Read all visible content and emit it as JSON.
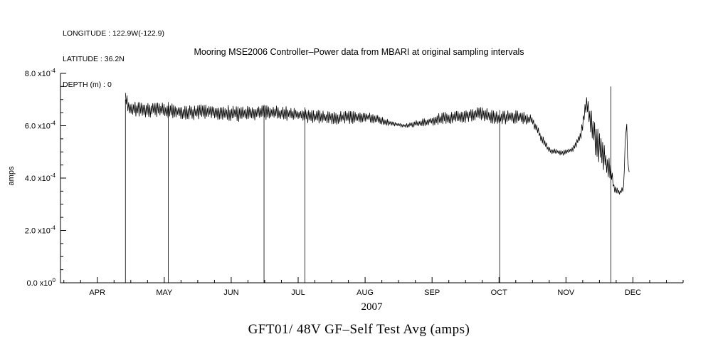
{
  "meta": {
    "longitude": "LONGITUDE : 122.9W(-122.9)",
    "latitude": "LATITUDE : 36.2N",
    "depth": "DEPTH (m) : 0"
  },
  "caption": "GFT01/ 48V GF–Self Test Avg (amps)",
  "chart_data": {
    "type": "line",
    "title": "Mooring MSE2006 Controller–Power data from MBARI at original sampling intervals",
    "xlabel": "2007",
    "ylabel": "amps",
    "x_range": [
      3.45,
      12.75
    ],
    "y_range_amps": [
      0,
      0.0008
    ],
    "x_ticks": [
      {
        "pos": 4,
        "label": "APR"
      },
      {
        "pos": 5,
        "label": "MAY"
      },
      {
        "pos": 6,
        "label": "JUN"
      },
      {
        "pos": 7,
        "label": "JUL"
      },
      {
        "pos": 8,
        "label": "AUG"
      },
      {
        "pos": 9,
        "label": "SEP"
      },
      {
        "pos": 10,
        "label": "OCT"
      },
      {
        "pos": 11,
        "label": "NOV"
      },
      {
        "pos": 12,
        "label": "DEC"
      }
    ],
    "x_minor_step": 0.25,
    "y_ticks": [
      {
        "value": 0.0,
        "mantissa": "0.0",
        "exponent": "0"
      },
      {
        "value": 0.0002,
        "mantissa": "2.0",
        "exponent": "-4"
      },
      {
        "value": 0.0004,
        "mantissa": "4.0",
        "exponent": "-4"
      },
      {
        "value": 0.0006,
        "mantissa": "6.0",
        "exponent": "-4"
      },
      {
        "value": 0.0008,
        "mantissa": "8.0",
        "exponent": "-4"
      }
    ],
    "y_minor_step": 5e-05,
    "grid": false,
    "legend": false,
    "series": {
      "name": "GFT01 48V GF-Self Test Avg",
      "color": "#000000",
      "x_start": 4.42,
      "x_end": 11.95,
      "sample_step": 0.012,
      "baseline_e4": [
        [
          4.42,
          7.0
        ],
        [
          4.48,
          6.65
        ],
        [
          4.7,
          6.6
        ],
        [
          5.0,
          6.6
        ],
        [
          5.3,
          6.5
        ],
        [
          5.7,
          6.55
        ],
        [
          6.1,
          6.45
        ],
        [
          6.5,
          6.5
        ],
        [
          6.9,
          6.45
        ],
        [
          7.2,
          6.35
        ],
        [
          7.6,
          6.3
        ],
        [
          8.0,
          6.35
        ],
        [
          8.25,
          6.2
        ],
        [
          8.45,
          6.05
        ],
        [
          8.6,
          6.0
        ],
        [
          8.8,
          6.1
        ],
        [
          9.1,
          6.25
        ],
        [
          9.4,
          6.35
        ],
        [
          9.7,
          6.45
        ],
        [
          10.0,
          6.3
        ],
        [
          10.3,
          6.35
        ],
        [
          10.5,
          6.2
        ],
        [
          10.62,
          5.6
        ],
        [
          10.75,
          5.05
        ],
        [
          10.95,
          4.95
        ],
        [
          11.1,
          5.1
        ],
        [
          11.22,
          5.6
        ],
        [
          11.3,
          6.9
        ],
        [
          11.36,
          6.3
        ],
        [
          11.45,
          5.4
        ],
        [
          11.55,
          4.9
        ],
        [
          11.62,
          4.5
        ],
        [
          11.67,
          4.2
        ],
        [
          11.72,
          3.6
        ],
        [
          11.8,
          3.45
        ],
        [
          11.86,
          3.6
        ],
        [
          11.9,
          6.3
        ],
        [
          11.93,
          4.3
        ]
      ],
      "noise_halfband_e4": [
        [
          4.42,
          0.3
        ],
        [
          5.0,
          0.28
        ],
        [
          6.0,
          0.3
        ],
        [
          7.0,
          0.27
        ],
        [
          7.8,
          0.25
        ],
        [
          8.2,
          0.2
        ],
        [
          8.5,
          0.07
        ],
        [
          8.75,
          0.12
        ],
        [
          9.2,
          0.25
        ],
        [
          9.8,
          0.28
        ],
        [
          10.3,
          0.25
        ],
        [
          10.55,
          0.2
        ],
        [
          10.75,
          0.12
        ],
        [
          11.0,
          0.1
        ],
        [
          11.2,
          0.15
        ],
        [
          11.3,
          0.35
        ],
        [
          11.45,
          0.65
        ],
        [
          11.6,
          0.55
        ],
        [
          11.68,
          0.3
        ],
        [
          11.75,
          0.12
        ],
        [
          11.85,
          0.1
        ],
        [
          11.9,
          0.35
        ],
        [
          11.93,
          0.15
        ]
      ]
    },
    "dropouts": [
      {
        "x": 4.42,
        "top_e4": 7.0
      },
      {
        "x": 5.06,
        "top_e4": 6.9
      },
      {
        "x": 6.49,
        "top_e4": 6.8
      },
      {
        "x": 7.1,
        "top_e4": 6.7
      },
      {
        "x": 10.01,
        "top_e4": 6.6
      },
      {
        "x": 11.67,
        "top_e4": 7.5
      }
    ]
  }
}
